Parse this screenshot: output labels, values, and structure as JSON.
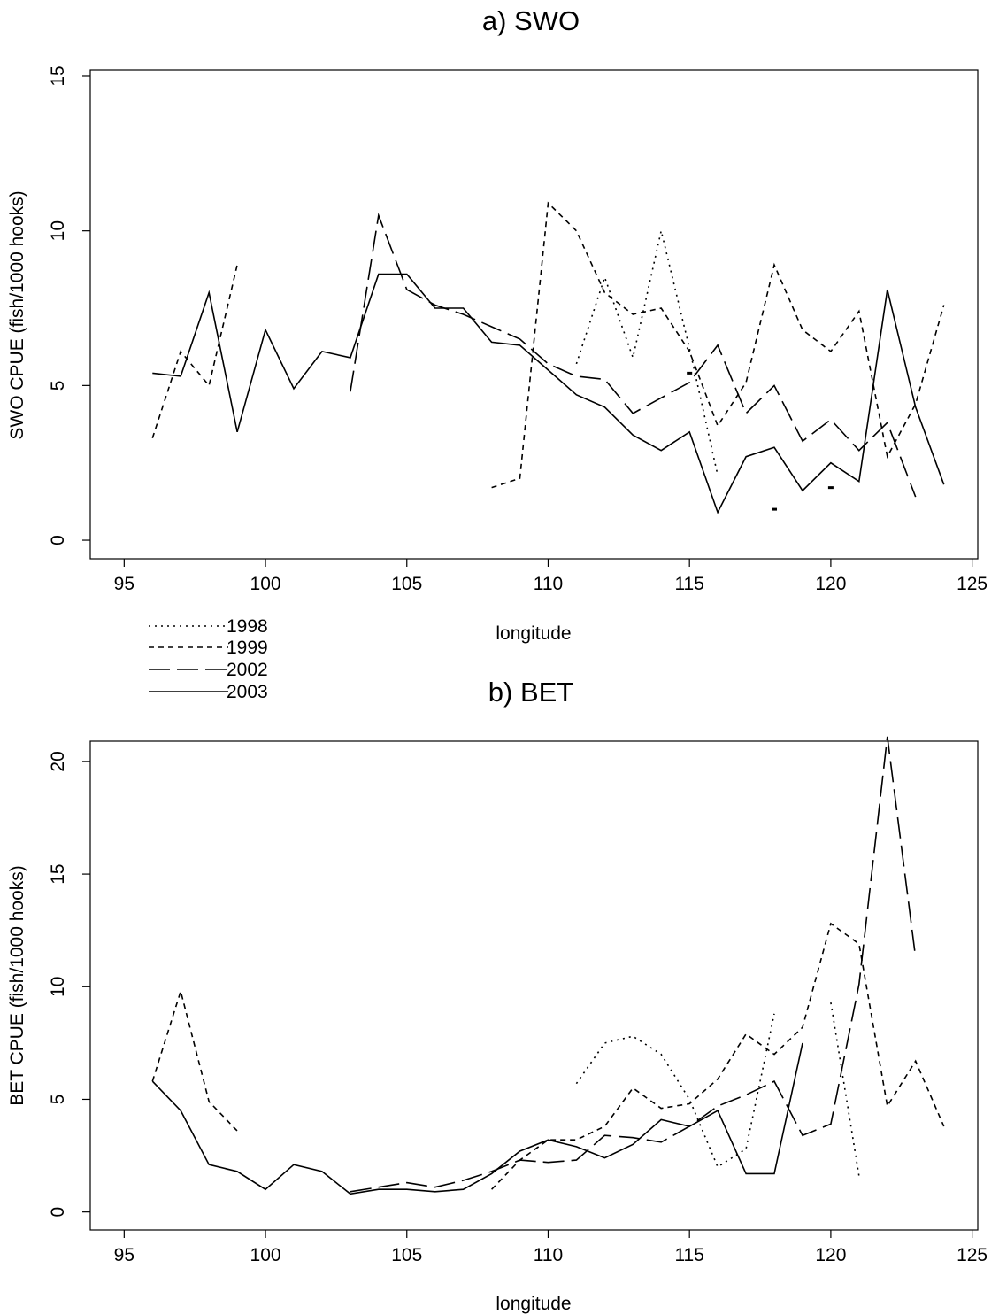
{
  "legend": [
    {
      "name": "1998",
      "dash": "2,5"
    },
    {
      "name": "1999",
      "dash": "6,5"
    },
    {
      "name": "2002",
      "dash": "24,8"
    },
    {
      "name": "2003",
      "dash": ""
    }
  ],
  "chart_data": [
    {
      "type": "line",
      "title": "a) SWO",
      "xlabel": "longitude",
      "ylabel": "SWO CPUE  (fish/1000 hooks)",
      "xlim": [
        93.8,
        125.2
      ],
      "ylim": [
        -0.6,
        15.2
      ],
      "xticks": [
        95,
        100,
        105,
        110,
        115,
        120,
        125
      ],
      "yticks": [
        0,
        5,
        10,
        15
      ],
      "grid": false,
      "legend_position": "below-left",
      "series": [
        {
          "name": "1998",
          "dash": "2,5",
          "segments": [
            [
              [
                111,
                5.7
              ],
              [
                112,
                8.5
              ],
              [
                113,
                5.9
              ],
              [
                114,
                10.0
              ],
              [
                115,
                6.2
              ],
              [
                116,
                2.1
              ]
            ]
          ],
          "points": [
            [
              115,
              5.4
            ],
            [
              118,
              1.0
            ],
            [
              120,
              1.7
            ]
          ]
        },
        {
          "name": "1999",
          "dash": "6,5",
          "segments": [
            [
              [
                96,
                3.3
              ],
              [
                97,
                6.1
              ],
              [
                98,
                5.0
              ],
              [
                99,
                8.9
              ]
            ],
            [
              [
                108,
                1.7
              ],
              [
                109,
                2.0
              ],
              [
                110,
                10.9
              ],
              [
                111,
                10.0
              ],
              [
                112,
                8.0
              ],
              [
                113,
                7.3
              ],
              [
                114,
                7.5
              ],
              [
                115,
                6.1
              ],
              [
                116,
                3.7
              ],
              [
                117,
                5.1
              ],
              [
                118,
                8.9
              ],
              [
                119,
                6.8
              ],
              [
                120,
                6.1
              ],
              [
                121,
                7.4
              ],
              [
                122,
                2.7
              ],
              [
                123,
                4.4
              ],
              [
                124,
                7.6
              ]
            ]
          ],
          "points": []
        },
        {
          "name": "2002",
          "dash": "24,8",
          "segments": [
            [
              [
                103,
                4.8
              ],
              [
                104,
                10.5
              ],
              [
                105,
                8.1
              ],
              [
                106,
                7.6
              ],
              [
                107,
                7.3
              ],
              [
                108,
                6.9
              ],
              [
                109,
                6.5
              ],
              [
                110,
                5.7
              ],
              [
                111,
                5.3
              ],
              [
                112,
                5.2
              ],
              [
                113,
                4.1
              ],
              [
                114,
                4.6
              ],
              [
                115,
                5.1
              ],
              [
                116,
                6.3
              ],
              [
                117,
                4.1
              ],
              [
                118,
                5.0
              ],
              [
                119,
                3.2
              ],
              [
                120,
                3.9
              ],
              [
                121,
                2.9
              ],
              [
                122,
                3.8
              ],
              [
                123,
                1.4
              ]
            ]
          ],
          "points": []
        },
        {
          "name": "2003",
          "dash": "",
          "segments": [
            [
              [
                96,
                5.4
              ],
              [
                97,
                5.3
              ],
              [
                98,
                8.0
              ],
              [
                99,
                3.5
              ],
              [
                100,
                6.8
              ],
              [
                101,
                4.9
              ],
              [
                102,
                6.1
              ],
              [
                103,
                5.9
              ],
              [
                104,
                8.6
              ],
              [
                105,
                8.6
              ],
              [
                106,
                7.5
              ],
              [
                107,
                7.5
              ],
              [
                108,
                6.4
              ],
              [
                109,
                6.3
              ],
              [
                110,
                5.5
              ],
              [
                111,
                4.7
              ],
              [
                112,
                4.3
              ],
              [
                113,
                3.4
              ],
              [
                114,
                2.9
              ],
              [
                115,
                3.5
              ],
              [
                116,
                0.9
              ],
              [
                117,
                2.7
              ],
              [
                118,
                3.0
              ],
              [
                119,
                1.6
              ],
              [
                120,
                2.5
              ],
              [
                121,
                1.9
              ],
              [
                122,
                8.1
              ],
              [
                123,
                4.3
              ],
              [
                124,
                1.8
              ]
            ]
          ],
          "points": []
        }
      ]
    },
    {
      "type": "line",
      "title": "b) BET",
      "xlabel": "longitude",
      "ylabel": "BET CPUE  (fish/1000 hooks)",
      "xlim": [
        93.8,
        125.2
      ],
      "ylim": [
        -0.8,
        20.9
      ],
      "xticks": [
        95,
        100,
        105,
        110,
        115,
        120,
        125
      ],
      "yticks": [
        0,
        5,
        10,
        15,
        20
      ],
      "grid": false,
      "legend_position": "none",
      "series": [
        {
          "name": "1998",
          "dash": "2,5",
          "segments": [
            [
              [
                111,
                5.7
              ],
              [
                112,
                7.5
              ],
              [
                113,
                7.8
              ],
              [
                114,
                7.0
              ],
              [
                115,
                5.0
              ],
              [
                116,
                2.0
              ],
              [
                117,
                2.8
              ],
              [
                118,
                8.8
              ]
            ],
            [
              [
                120,
                9.3
              ],
              [
                121,
                1.6
              ]
            ]
          ],
          "points": []
        },
        {
          "name": "1999",
          "dash": "6,5",
          "segments": [
            [
              [
                96,
                5.8
              ],
              [
                97,
                9.8
              ],
              [
                98,
                4.9
              ],
              [
                99,
                3.6
              ]
            ],
            [
              [
                108,
                1.0
              ],
              [
                109,
                2.3
              ],
              [
                110,
                3.2
              ],
              [
                111,
                3.2
              ],
              [
                112,
                3.8
              ],
              [
                113,
                5.5
              ],
              [
                114,
                4.6
              ],
              [
                115,
                4.8
              ],
              [
                116,
                5.9
              ],
              [
                117,
                7.9
              ],
              [
                118,
                7.0
              ],
              [
                119,
                8.2
              ],
              [
                120,
                12.8
              ],
              [
                121,
                11.9
              ],
              [
                122,
                4.7
              ],
              [
                123,
                6.7
              ],
              [
                124,
                3.8
              ]
            ]
          ],
          "points": []
        },
        {
          "name": "2002",
          "dash": "24,8",
          "segments": [
            [
              [
                103,
                0.9
              ],
              [
                104,
                1.1
              ],
              [
                105,
                1.3
              ],
              [
                106,
                1.1
              ],
              [
                107,
                1.4
              ],
              [
                108,
                1.8
              ],
              [
                109,
                2.3
              ],
              [
                110,
                2.2
              ],
              [
                111,
                2.3
              ],
              [
                112,
                3.4
              ],
              [
                113,
                3.3
              ],
              [
                114,
                3.1
              ],
              [
                115,
                3.8
              ],
              [
                116,
                4.7
              ],
              [
                117,
                5.2
              ],
              [
                118,
                5.8
              ],
              [
                119,
                3.4
              ],
              [
                120,
                3.9
              ],
              [
                121,
                10.1
              ],
              [
                122,
                21.1
              ],
              [
                123,
                11.3
              ]
            ]
          ],
          "points": []
        },
        {
          "name": "2003",
          "dash": "",
          "segments": [
            [
              [
                96,
                5.8
              ],
              [
                97,
                4.5
              ],
              [
                98,
                2.1
              ],
              [
                99,
                1.8
              ],
              [
                100,
                1.0
              ],
              [
                101,
                2.1
              ],
              [
                102,
                1.8
              ],
              [
                103,
                0.8
              ],
              [
                104,
                1.0
              ],
              [
                105,
                1.0
              ],
              [
                106,
                0.9
              ],
              [
                107,
                1.0
              ],
              [
                108,
                1.7
              ],
              [
                109,
                2.7
              ],
              [
                110,
                3.2
              ],
              [
                111,
                2.9
              ],
              [
                112,
                2.4
              ],
              [
                113,
                3.0
              ],
              [
                114,
                4.1
              ],
              [
                115,
                3.8
              ],
              [
                116,
                4.5
              ],
              [
                117,
                1.7
              ],
              [
                118,
                1.7
              ],
              [
                119,
                7.5
              ]
            ]
          ],
          "points": []
        }
      ]
    }
  ]
}
